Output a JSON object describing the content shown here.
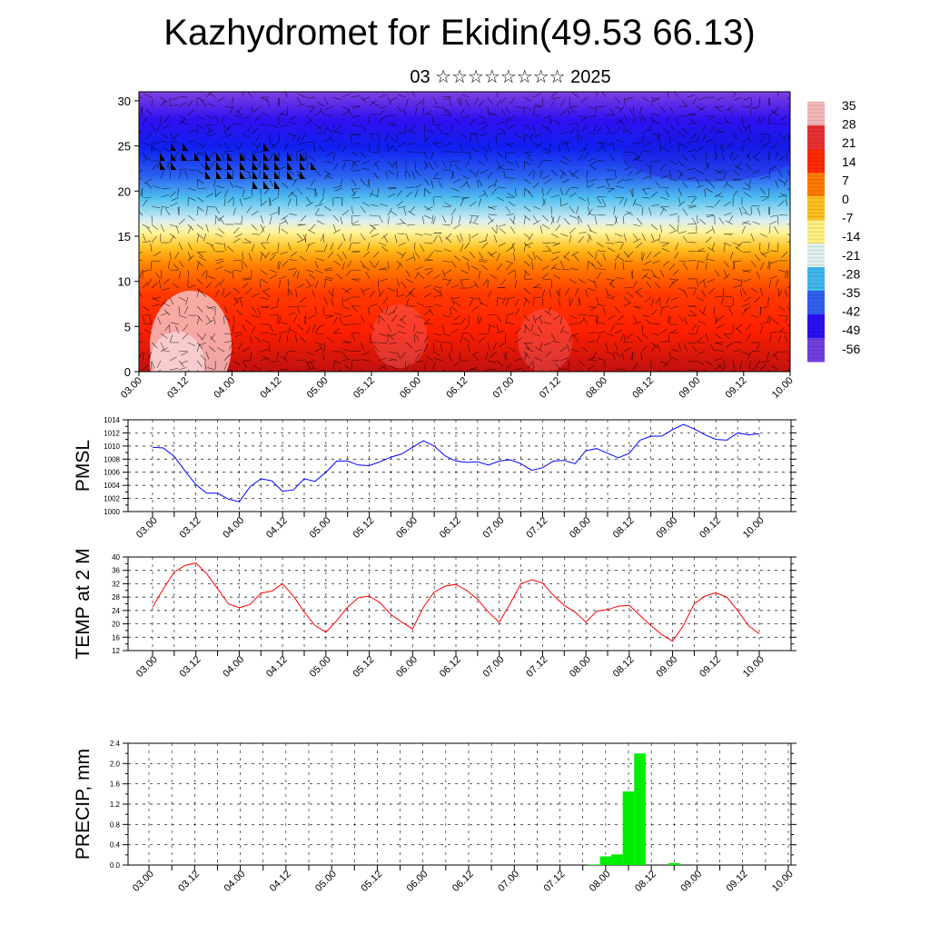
{
  "title": "Kazhydromet for Ekidin(49.53 66.13)",
  "subtitle": "03 ☆☆☆☆☆☆☆☆ 2025",
  "time_labels": [
    "03.00",
    "03.12",
    "04.00",
    "04.12",
    "05.00",
    "05.12",
    "06.00",
    "06.12",
    "07.00",
    "07.12",
    "08.00",
    "08.12",
    "09.00",
    "09.12",
    "10.00"
  ],
  "chart_data": [
    {
      "type": "heatmap",
      "panel": "cross-section",
      "y_ticks": [
        0,
        5,
        10,
        15,
        20,
        25,
        30
      ],
      "ylim": [
        0,
        31
      ],
      "colorbar_labels": [
        35,
        28,
        21,
        14,
        7,
        0,
        -7,
        -14,
        -21,
        -28,
        -35,
        -42,
        -49,
        -56
      ],
      "colorbar_colors": [
        "#f4b8b8",
        "#e83030",
        "#ff2a00",
        "#ff7a00",
        "#ffc020",
        "#fff080",
        "#e0f0f0",
        "#40b8f0",
        "#3060f0",
        "#2a10f0",
        "#7040e0"
      ],
      "wind_barbs": true
    },
    {
      "type": "line",
      "ylabel": "PMSL",
      "ylim": [
        1000,
        1014
      ],
      "y_ticks": [
        1000,
        1002,
        1004,
        1006,
        1008,
        1010,
        1012,
        1014
      ],
      "color": "#0000ff",
      "x": [
        0,
        3,
        6,
        9,
        12,
        15,
        18,
        21,
        24,
        27,
        30,
        33,
        36,
        39,
        42,
        45,
        48,
        51,
        54,
        57,
        60,
        63,
        66,
        69,
        72,
        75,
        78,
        81,
        84,
        87,
        90,
        93,
        96,
        99,
        102,
        105,
        108,
        111,
        114,
        117,
        120,
        123,
        126,
        129,
        132,
        135,
        138,
        141,
        144,
        147,
        150,
        153,
        156,
        159,
        162,
        165,
        168
      ],
      "values": [
        1009.8,
        1009.7,
        1008.4,
        1006.2,
        1004.1,
        1002.8,
        1002.8,
        1001.9,
        1001.5,
        1003.8,
        1005.0,
        1004.7,
        1003.1,
        1003.3,
        1005.0,
        1004.6,
        1006.0,
        1007.7,
        1007.7,
        1007.1,
        1007.0,
        1007.6,
        1008.3,
        1008.8,
        1009.8,
        1010.8,
        1010.0,
        1008.5,
        1007.7,
        1007.5,
        1007.6,
        1007.1,
        1007.7,
        1007.9,
        1007.3,
        1006.3,
        1006.7,
        1007.7,
        1007.8,
        1007.3,
        1009.3,
        1009.6,
        1008.9,
        1008.2,
        1008.9,
        1010.9,
        1011.5,
        1011.5,
        1012.5,
        1013.3,
        1012.6,
        1011.7,
        1011.0,
        1010.9,
        1012.0,
        1011.7,
        1011.9
      ]
    },
    {
      "type": "line",
      "ylabel": "TEMP at 2 M",
      "ylim": [
        12,
        40
      ],
      "y_ticks": [
        12,
        16,
        20,
        24,
        28,
        32,
        36,
        40
      ],
      "color": "#ff0000",
      "x": [
        0,
        3,
        6,
        9,
        12,
        15,
        18,
        21,
        24,
        27,
        30,
        33,
        36,
        39,
        42,
        45,
        48,
        51,
        54,
        57,
        60,
        63,
        66,
        69,
        72,
        75,
        78,
        81,
        84,
        87,
        90,
        93,
        96,
        99,
        102,
        105,
        108,
        111,
        114,
        117,
        120,
        123,
        126,
        129,
        132,
        135,
        138,
        141,
        144,
        147,
        150,
        153,
        156,
        159,
        162,
        165,
        168
      ],
      "values": [
        25.0,
        30.5,
        35.5,
        37.5,
        38.2,
        35.0,
        30.5,
        26.0,
        24.8,
        25.8,
        29.2,
        29.8,
        32.0,
        28.3,
        23.5,
        19.5,
        17.5,
        21.0,
        25.0,
        27.8,
        28.3,
        26.3,
        22.8,
        20.5,
        18.5,
        25.0,
        29.5,
        31.3,
        31.8,
        30.0,
        27.3,
        23.5,
        20.5,
        26.0,
        32.0,
        33.2,
        32.2,
        28.5,
        25.5,
        23.5,
        20.5,
        23.8,
        24.3,
        25.3,
        25.5,
        22.5,
        19.5,
        16.8,
        14.8,
        19.5,
        26.0,
        28.3,
        29.3,
        28.0,
        24.0,
        19.5,
        17.0
      ]
    },
    {
      "type": "bar",
      "ylabel": "PRECIP, mm",
      "ylim": [
        0,
        2.4
      ],
      "y_ticks": [
        0.0,
        0.4,
        0.8,
        1.2,
        1.6,
        2.0,
        2.4
      ],
      "color": "#00ee00",
      "bars": [
        {
          "x": 117,
          "value": 0.01
        },
        {
          "x": 120,
          "value": 0.17
        },
        {
          "x": 123,
          "value": 0.21
        },
        {
          "x": 126,
          "value": 1.45
        },
        {
          "x": 129,
          "value": 2.2
        },
        {
          "x": 138,
          "value": 0.04
        }
      ]
    }
  ]
}
